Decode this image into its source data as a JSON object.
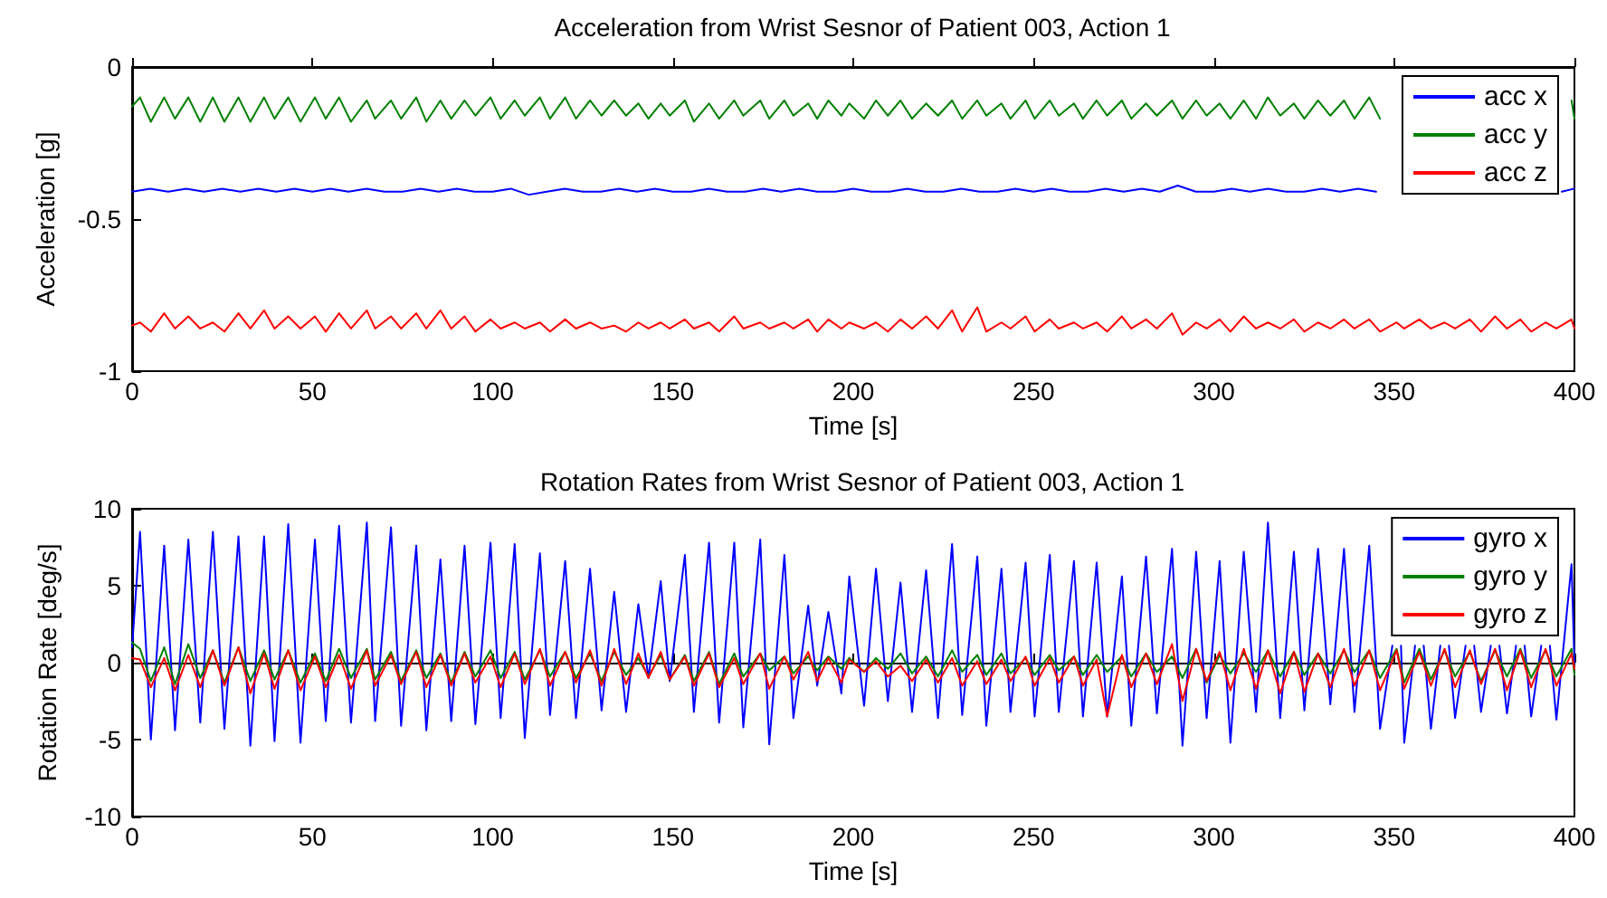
{
  "chart_data": [
    {
      "type": "line",
      "title": "Acceleration from Wrist Sesnor of Patient 003, Action 1",
      "xlabel": "Time [s]",
      "ylabel": "Acceleration [g]",
      "xlim": [
        0,
        400
      ],
      "xticks": [
        0,
        50,
        100,
        150,
        200,
        250,
        300,
        350,
        400
      ],
      "ylim": [
        -1,
        0
      ],
      "yticks": [
        -1,
        -0.5,
        0
      ],
      "legend": "top right",
      "series": [
        {
          "name": "acc x",
          "color": "#0000ff",
          "x": [
            0,
            5,
            10,
            15,
            20,
            25,
            30,
            35,
            40,
            45,
            50,
            55,
            60,
            65,
            70,
            75,
            80,
            85,
            90,
            95,
            100,
            105,
            110,
            115,
            120,
            125,
            130,
            135,
            140,
            145,
            150,
            155,
            160,
            165,
            170,
            175,
            180,
            185,
            190,
            195,
            200,
            205,
            210,
            215,
            220,
            225,
            230,
            235,
            240,
            245,
            250,
            255,
            260,
            265,
            270,
            275,
            280,
            285,
            290,
            295,
            300,
            305,
            310,
            315,
            320,
            325,
            330,
            335,
            340,
            345,
            350,
            396.5,
            400
          ],
          "values": [
            -0.41,
            -0.4,
            -0.41,
            -0.4,
            -0.41,
            -0.4,
            -0.41,
            -0.4,
            -0.41,
            -0.4,
            -0.41,
            -0.4,
            -0.41,
            -0.4,
            -0.41,
            -0.41,
            -0.4,
            -0.41,
            -0.4,
            -0.41,
            -0.41,
            -0.4,
            -0.42,
            -0.41,
            -0.4,
            -0.41,
            -0.41,
            -0.4,
            -0.41,
            -0.4,
            -0.41,
            -0.41,
            -0.4,
            -0.41,
            -0.41,
            -0.4,
            -0.41,
            -0.4,
            -0.41,
            -0.41,
            -0.4,
            -0.41,
            -0.41,
            -0.4,
            -0.41,
            -0.41,
            -0.4,
            -0.41,
            -0.41,
            -0.4,
            -0.41,
            -0.4,
            -0.41,
            -0.41,
            -0.4,
            -0.41,
            -0.4,
            -0.41,
            -0.39,
            -0.41,
            -0.41,
            -0.4,
            -0.41,
            -0.4,
            -0.41,
            -0.41,
            -0.4,
            -0.41,
            -0.4,
            -0.41,
            null,
            -0.41,
            -0.4
          ]
        },
        {
          "name": "acc y",
          "color": "#008000",
          "x": [
            0,
            2.2,
            5.2,
            8.9,
            11.9,
            15.6,
            18.9,
            22.4,
            25.6,
            29.5,
            32.8,
            36.6,
            39.5,
            43.3,
            46.7,
            50.7,
            53.7,
            57.4,
            60.7,
            65.1,
            67.4,
            71.8,
            74.6,
            78.8,
            81.6,
            85.5,
            88.5,
            92.2,
            95.2,
            99.4,
            102.2,
            106.1,
            108.9,
            113.1,
            115.9,
            120.1,
            123.1,
            127,
            130.2,
            133.7,
            137,
            140.4,
            143.2,
            146.6,
            149.1,
            153.3,
            155.8,
            160,
            162.8,
            167,
            169.5,
            174.2,
            176.7,
            180.9,
            183.4,
            187.5,
            190,
            193.1,
            196.7,
            198.9,
            203,
            206.3,
            209.6,
            213.1,
            216.3,
            220.2,
            223.5,
            227.4,
            230.2,
            234.4,
            236.9,
            241.1,
            243.6,
            247.8,
            250.3,
            254.5,
            257,
            261.2,
            263.7,
            267.5,
            270.4,
            274.5,
            277.1,
            281.2,
            284.2,
            288.4,
            291.3,
            295.1,
            298,
            301.6,
            304.6,
            308.3,
            311.7,
            315,
            318.4,
            322.2,
            325.1,
            328.9,
            332.3,
            336.1,
            339,
            343.1,
            346.1,
            350.7,
            352.8,
            357,
            360.2,
            364,
            366.9,
            371,
            374.1,
            378,
            381.3,
            385,
            388,
            392,
            395,
            399.2,
            400
          ],
          "values": [
            -0.13,
            -0.1,
            -0.18,
            -0.1,
            -0.17,
            -0.1,
            -0.18,
            -0.1,
            -0.18,
            -0.1,
            -0.18,
            -0.1,
            -0.17,
            -0.1,
            -0.18,
            -0.1,
            -0.17,
            -0.1,
            -0.18,
            -0.11,
            -0.17,
            -0.11,
            -0.17,
            -0.1,
            -0.18,
            -0.11,
            -0.17,
            -0.11,
            -0.16,
            -0.1,
            -0.17,
            -0.11,
            -0.16,
            -0.1,
            -0.17,
            -0.1,
            -0.17,
            -0.11,
            -0.16,
            -0.11,
            -0.16,
            -0.12,
            -0.17,
            -0.12,
            -0.16,
            -0.11,
            -0.18,
            -0.12,
            -0.17,
            -0.11,
            -0.16,
            -0.11,
            -0.17,
            -0.11,
            -0.16,
            -0.12,
            -0.17,
            -0.11,
            -0.16,
            -0.12,
            -0.17,
            -0.11,
            -0.16,
            -0.11,
            -0.17,
            -0.12,
            -0.16,
            -0.11,
            -0.17,
            -0.11,
            -0.16,
            -0.12,
            -0.17,
            -0.11,
            -0.17,
            -0.11,
            -0.16,
            -0.12,
            -0.17,
            -0.11,
            -0.16,
            -0.11,
            -0.17,
            -0.12,
            -0.16,
            -0.11,
            -0.17,
            -0.11,
            -0.16,
            -0.12,
            -0.17,
            -0.11,
            -0.17,
            -0.1,
            -0.16,
            -0.12,
            -0.17,
            -0.11,
            -0.16,
            -0.11,
            -0.17,
            -0.1,
            -0.17,
            null,
            null,
            null,
            null,
            null,
            null,
            null,
            null,
            null,
            null,
            null,
            null,
            null,
            null,
            -0.11,
            -0.17
          ]
        },
        {
          "name": "acc z",
          "color": "#ff0000",
          "x": [
            0,
            2.2,
            5.2,
            8.9,
            11.9,
            15.6,
            18.9,
            22.4,
            25.6,
            29.5,
            32.8,
            36.6,
            39.5,
            43.3,
            46.7,
            50.7,
            53.7,
            57.4,
            60.7,
            65.1,
            67.4,
            71.8,
            74.6,
            78.8,
            81.6,
            85.5,
            88.5,
            92.2,
            95.2,
            99.4,
            102.2,
            106.1,
            108.9,
            113.1,
            115.9,
            120.1,
            123.1,
            127,
            130.2,
            133.7,
            137,
            140.4,
            143.2,
            146.6,
            149.1,
            153.3,
            155.8,
            160,
            162.8,
            167,
            169.5,
            174.2,
            176.7,
            180.9,
            183.4,
            187.5,
            190,
            193.1,
            196.7,
            198.9,
            203,
            206.3,
            209.6,
            213.1,
            216.3,
            220.2,
            223.5,
            227.4,
            230.2,
            234.4,
            236.9,
            241.1,
            243.6,
            247.8,
            250.3,
            254.5,
            257,
            261.2,
            263.7,
            267.5,
            270.4,
            274.5,
            277.1,
            281.2,
            284.2,
            288.4,
            291.3,
            295.1,
            298,
            301.6,
            304.6,
            308.3,
            311.7,
            315,
            318.4,
            322.2,
            325.1,
            328.9,
            332.3,
            336.1,
            339,
            343.1,
            346.1,
            350.7,
            352.8,
            357,
            360.2,
            364,
            366.9,
            371,
            374.1,
            378,
            381.3,
            385,
            388,
            392,
            395,
            399.2,
            400
          ],
          "values": [
            -0.85,
            -0.84,
            -0.87,
            -0.81,
            -0.86,
            -0.82,
            -0.86,
            -0.84,
            -0.87,
            -0.81,
            -0.86,
            -0.8,
            -0.86,
            -0.82,
            -0.86,
            -0.82,
            -0.87,
            -0.81,
            -0.86,
            -0.8,
            -0.86,
            -0.82,
            -0.86,
            -0.81,
            -0.86,
            -0.8,
            -0.86,
            -0.82,
            -0.87,
            -0.83,
            -0.86,
            -0.84,
            -0.86,
            -0.84,
            -0.87,
            -0.83,
            -0.86,
            -0.84,
            -0.86,
            -0.85,
            -0.87,
            -0.84,
            -0.86,
            -0.84,
            -0.86,
            -0.83,
            -0.86,
            -0.84,
            -0.87,
            -0.82,
            -0.86,
            -0.84,
            -0.86,
            -0.84,
            -0.86,
            -0.83,
            -0.87,
            -0.83,
            -0.86,
            -0.84,
            -0.86,
            -0.84,
            -0.87,
            -0.83,
            -0.86,
            -0.82,
            -0.86,
            -0.8,
            -0.87,
            -0.79,
            -0.87,
            -0.84,
            -0.86,
            -0.82,
            -0.87,
            -0.83,
            -0.86,
            -0.84,
            -0.86,
            -0.84,
            -0.87,
            -0.82,
            -0.86,
            -0.83,
            -0.86,
            -0.81,
            -0.88,
            -0.84,
            -0.86,
            -0.83,
            -0.87,
            -0.82,
            -0.86,
            -0.84,
            -0.86,
            -0.83,
            -0.87,
            -0.84,
            -0.86,
            -0.83,
            -0.86,
            -0.83,
            -0.87,
            -0.84,
            -0.86,
            -0.83,
            -0.86,
            -0.84,
            -0.86,
            -0.83,
            -0.87,
            -0.82,
            -0.86,
            -0.83,
            -0.87,
            -0.84,
            -0.86,
            -0.83,
            -0.86
          ]
        }
      ]
    },
    {
      "type": "line",
      "title": "Rotation Rates from Wrist Sesnor of Patient 003, Action 1",
      "xlabel": "Time [s]",
      "ylabel": "Rotation Rate [deg/s]",
      "xlim": [
        0,
        400
      ],
      "xticks": [
        0,
        50,
        100,
        150,
        200,
        250,
        300,
        350,
        400
      ],
      "ylim": [
        -10,
        10
      ],
      "yticks": [
        -10,
        -5,
        0,
        5,
        10
      ],
      "legend": "top right",
      "series": [
        {
          "name": "gyro x",
          "color": "#0000ff",
          "x": [
            0,
            2.2,
            5.2,
            8.9,
            11.9,
            15.6,
            18.9,
            22.4,
            25.6,
            29.5,
            32.8,
            36.6,
            39.5,
            43.3,
            46.7,
            50.7,
            53.7,
            57.4,
            60.7,
            65.1,
            67.4,
            71.8,
            74.6,
            78.8,
            81.6,
            85.5,
            88.5,
            92.2,
            95.2,
            99.4,
            102.2,
            106.1,
            108.9,
            113.1,
            115.9,
            120.1,
            123.1,
            127,
            130.2,
            133.7,
            137,
            140.4,
            143.2,
            146.6,
            149.1,
            153.3,
            155.8,
            160,
            162.8,
            167,
            169.5,
            174.2,
            176.7,
            180.9,
            183.4,
            187.5,
            190,
            193.1,
            196.7,
            198.9,
            203,
            206.3,
            209.6,
            213.1,
            216.3,
            220.2,
            223.5,
            227.4,
            230.2,
            234.4,
            236.9,
            241.1,
            243.6,
            247.8,
            250.3,
            254.5,
            257,
            261.2,
            263.7,
            267.5,
            270.4,
            274.5,
            277.1,
            281.2,
            284.2,
            288.4,
            291.3,
            295.1,
            298,
            301.6,
            304.6,
            308.3,
            311.7,
            315,
            318.4,
            322.2,
            325.1,
            328.9,
            332.3,
            336.1,
            339,
            343.1,
            346.1,
            349.5,
            350.7,
            351.9,
            352.8,
            355.8,
            357,
            358.2,
            360.2,
            362.8,
            364,
            365.2,
            366.9,
            369.8,
            371,
            372.2,
            374.1,
            376.8,
            378,
            379.2,
            381.3,
            383.8,
            385,
            386.2,
            388,
            390.8,
            392,
            393.2,
            395,
            399.2,
            400
          ],
          "values": [
            1,
            8.5,
            -5,
            7.6,
            -4.4,
            8,
            -3.9,
            8.5,
            -4.3,
            8.2,
            -5.4,
            8.2,
            -5.1,
            9,
            -5.2,
            8,
            -3.8,
            8.9,
            -3.9,
            9.1,
            -3.8,
            8.8,
            -4.1,
            7.6,
            -4.4,
            6.7,
            -3.8,
            7.6,
            -4,
            7.8,
            -3.6,
            7.7,
            -4.9,
            7.1,
            -3.4,
            6.6,
            -3.6,
            6.1,
            -3.1,
            4.6,
            -3.2,
            3.8,
            -1,
            5.3,
            -1.2,
            7,
            -3.2,
            7.8,
            -3.9,
            7.8,
            -4.2,
            8,
            -5.3,
            7,
            -3.6,
            3.7,
            -1.5,
            3.3,
            -2,
            5.6,
            -2.8,
            6.1,
            -2.5,
            5.2,
            -3.2,
            6,
            -3.6,
            7.7,
            -3.4,
            6.9,
            -4.1,
            6.1,
            -3.2,
            6.5,
            -3.5,
            7,
            -3.2,
            6.6,
            -3.5,
            6.5,
            -3.5,
            5.6,
            -4.1,
            6.9,
            -3.3,
            7.4,
            -5.4,
            7.2,
            -3.6,
            6.6,
            -5.2,
            7.2,
            -3.2,
            9.1,
            -3.6,
            7.2,
            -3.1,
            7.4,
            -2.7,
            7.4,
            -3.2,
            7.6,
            -4.3,
            1.1,
            null,
            1.1,
            -5.2,
            1.1,
            null,
            1.1,
            -4.3,
            1.1,
            null,
            1.1,
            -3.6,
            1.1,
            null,
            1.1,
            -3.2,
            1.1,
            null,
            1.1,
            -3.3,
            1.1,
            null,
            1.1,
            -3.5,
            1.1,
            null,
            1.1,
            -3.7,
            6.4,
            0
          ]
        },
        {
          "name": "gyro y",
          "color": "#008000",
          "x": [
            0,
            2.2,
            5.2,
            8.9,
            11.9,
            15.6,
            18.9,
            22.4,
            25.6,
            29.5,
            32.8,
            36.6,
            39.5,
            43.3,
            46.7,
            50.7,
            53.7,
            57.4,
            60.7,
            65.1,
            67.4,
            71.8,
            74.6,
            78.8,
            81.6,
            85.5,
            88.5,
            92.2,
            95.2,
            99.4,
            102.2,
            106.1,
            108.9,
            113.1,
            115.9,
            120.1,
            123.1,
            127,
            130.2,
            133.7,
            137,
            140.4,
            143.2,
            146.6,
            149.1,
            153.3,
            155.8,
            160,
            162.8,
            167,
            169.5,
            174.2,
            176.7,
            180.9,
            183.4,
            187.5,
            190,
            193.1,
            196.7,
            198.9,
            203,
            206.3,
            209.6,
            213.1,
            216.3,
            220.2,
            223.5,
            227.4,
            230.2,
            234.4,
            236.9,
            241.1,
            243.6,
            247.8,
            250.3,
            254.5,
            257,
            261.2,
            263.7,
            267.5,
            270.4,
            274.5,
            277.1,
            281.2,
            284.2,
            288.4,
            291.3,
            295.1,
            298,
            301.6,
            304.6,
            308.3,
            311.7,
            315,
            318.4,
            322.2,
            325.1,
            328.9,
            332.3,
            336.1,
            339,
            343.1,
            346.1,
            350.7,
            352.8,
            357,
            360.2,
            364,
            366.9,
            371,
            374.1,
            378,
            381.3,
            385,
            388,
            392,
            395,
            399.2,
            400
          ],
          "values": [
            1.3,
            0.9,
            -1.2,
            1.0,
            -1.4,
            1.2,
            -1.0,
            0.8,
            -1.3,
            1.0,
            -1.2,
            0.8,
            -1.1,
            0.8,
            -1.3,
            0.6,
            -1.2,
            0.9,
            -1.0,
            0.9,
            -1.1,
            0.7,
            -1.2,
            0.8,
            -1.0,
            0.6,
            -1.3,
            0.7,
            -0.9,
            0.8,
            -1.0,
            0.7,
            -1.1,
            0.8,
            -0.9,
            0.7,
            -1.0,
            0.6,
            -1.2,
            0.7,
            -0.8,
            0.3,
            -0.9,
            0.5,
            -1.1,
            0.5,
            -1.2,
            0.7,
            -1.4,
            0.6,
            -0.9,
            0.6,
            -0.5,
            0.4,
            -0.7,
            0.4,
            -0.5,
            0.4,
            -0.4,
            0.3,
            -0.6,
            0.3,
            -0.4,
            0.6,
            -0.7,
            0.4,
            -0.9,
            0.8,
            -0.6,
            0.5,
            -0.8,
            0.6,
            -0.7,
            0.3,
            -0.8,
            0.5,
            -0.5,
            0.4,
            -0.8,
            0.5,
            -0.6,
            0.4,
            -0.9,
            0.6,
            -0.6,
            0.4,
            -1.0,
            0.9,
            -1.3,
            0.5,
            -0.7,
            0.6,
            -0.6,
            0.8,
            -0.9,
            0.7,
            -0.8,
            0.6,
            -0.7,
            0.8,
            -0.6,
            0.8,
            -1.0,
            0.9,
            -1.3,
            0.9,
            -1.1,
            0.8,
            -0.9,
            0.7,
            -1.2,
            0.8,
            -0.9,
            0.9,
            -1.0,
            0.8,
            -0.9,
            0.9,
            -0.8
          ]
        },
        {
          "name": "gyro z",
          "color": "#ff0000",
          "x": [
            0,
            2.2,
            5.2,
            8.9,
            11.9,
            15.6,
            18.9,
            22.4,
            25.6,
            29.5,
            32.8,
            36.6,
            39.5,
            43.3,
            46.7,
            50.7,
            53.7,
            57.4,
            60.7,
            65.1,
            67.4,
            71.8,
            74.6,
            78.8,
            81.6,
            85.5,
            88.5,
            92.2,
            95.2,
            99.4,
            102.2,
            106.1,
            108.9,
            113.1,
            115.9,
            120.1,
            123.1,
            127,
            130.2,
            133.7,
            137,
            140.4,
            143.2,
            146.6,
            149.1,
            153.3,
            155.8,
            160,
            162.8,
            167,
            169.5,
            174.2,
            176.7,
            180.9,
            183.4,
            187.5,
            190,
            193.1,
            196.7,
            198.9,
            203,
            206.3,
            209.6,
            213.1,
            216.3,
            220.2,
            223.5,
            227.4,
            230.2,
            234.4,
            236.9,
            241.1,
            243.6,
            247.8,
            250.3,
            254.5,
            257,
            261.2,
            263.7,
            267.5,
            270.4,
            274.5,
            277.1,
            281.2,
            284.2,
            288.4,
            291.3,
            295.1,
            298,
            301.6,
            304.6,
            308.3,
            311.7,
            315,
            318.4,
            322.2,
            325.1,
            328.9,
            332.3,
            336.1,
            339,
            343.1,
            346.1,
            350.7,
            352.8,
            357,
            360.2,
            364,
            366.9,
            371,
            374.1,
            378,
            381.3,
            385,
            388,
            392,
            395,
            399.2,
            400
          ],
          "values": [
            0.3,
            0.2,
            -1.6,
            0.3,
            -1.8,
            0.5,
            -1.6,
            0.8,
            -1.5,
            1.0,
            -2.0,
            0.6,
            -1.7,
            0.8,
            -1.8,
            0.4,
            -1.6,
            0.5,
            -1.7,
            0.8,
            -1.5,
            0.5,
            -1.4,
            0.7,
            -1.6,
            0.5,
            -1.5,
            0.6,
            -1.3,
            0.4,
            -1.6,
            0.6,
            -1.4,
            0.9,
            -1.5,
            0.7,
            -1.3,
            0.8,
            -1.5,
            0.9,
            -1.4,
            0.6,
            -1.0,
            0.7,
            -1.1,
            0.4,
            -1.5,
            0.6,
            -1.6,
            0.3,
            -1.4,
            0.6,
            -1.7,
            0.4,
            -1.1,
            0.7,
            -1.2,
            0.3,
            -1.3,
            0.2,
            -0.6,
            0.1,
            -0.9,
            -0.2,
            -1.2,
            0.2,
            -1.3,
            0.3,
            -1.5,
            0.1,
            -1.4,
            0.2,
            -1.2,
            0.4,
            -1.5,
            0.3,
            -1.3,
            0.4,
            -1.5,
            0.2,
            -3.5,
            0.5,
            -1.6,
            0.6,
            -1.4,
            1.2,
            -2.5,
            0.9,
            -1.2,
            0.7,
            -1.8,
            0.9,
            -1.7,
            0.8,
            -2.0,
            0.7,
            -1.9,
            0.6,
            -1.6,
            0.9,
            -1.5,
            0.8,
            -1.8,
            0.8,
            -1.7,
            0.7,
            -1.5,
            0.9,
            -1.6,
            0.8,
            -1.4,
            0.9,
            -1.8,
            0.8,
            -1.6,
            0.9,
            -1.5,
            0.6,
            -0.4
          ]
        }
      ]
    }
  ]
}
